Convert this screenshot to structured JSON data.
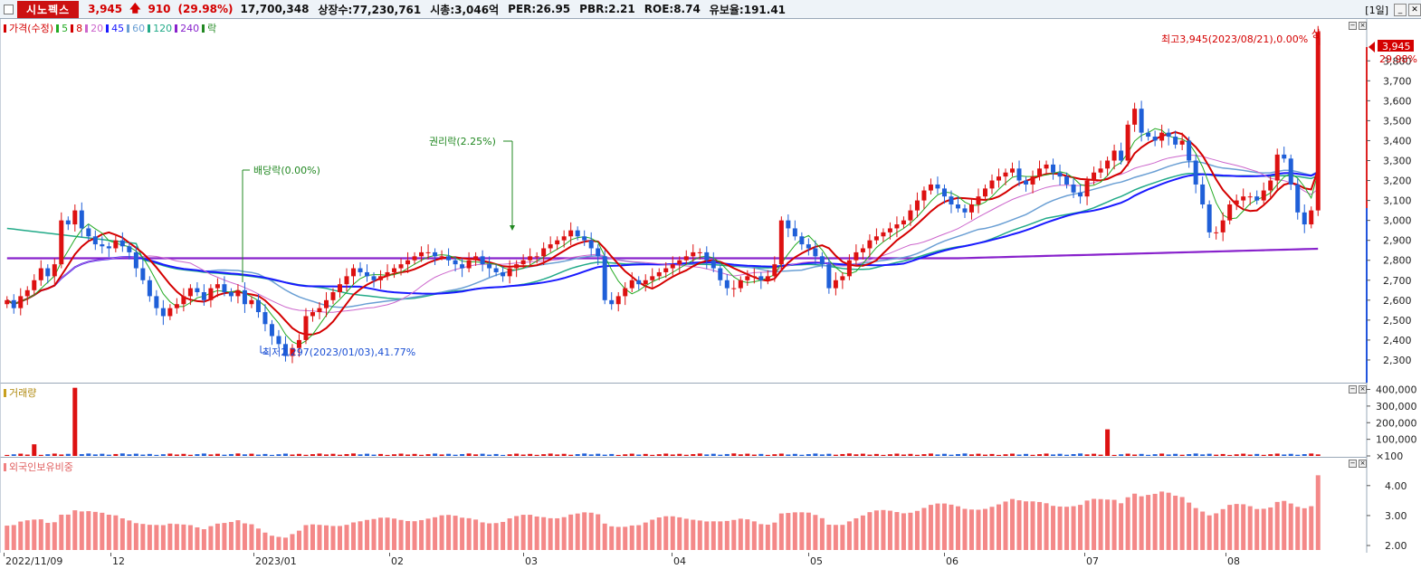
{
  "header": {
    "stock_name": "시노펙스",
    "price": "3,945",
    "change": "910",
    "change_pct": "(29.98%)",
    "volume": "17,700,348",
    "shares": "상장수:77,230,761",
    "mktcap": "시총:3,046억",
    "per": "PER:26.95",
    "pbr": "PBR:2.21",
    "roe": "ROE:8.74",
    "retention": "유보율:191.41",
    "period": "[1일]",
    "up_icon": "up-arrow-icon"
  },
  "price_panel": {
    "legend": [
      {
        "label": "가격(수정)",
        "color": "#d40000"
      },
      {
        "label": "5",
        "color": "#22aa22"
      },
      {
        "label": "8",
        "color": "#d40000"
      },
      {
        "label": "20",
        "color": "#cc66cc"
      },
      {
        "label": "45",
        "color": "#1a1aff"
      },
      {
        "label": "60",
        "color": "#6a9fd4"
      },
      {
        "label": "120",
        "color": "#22aa88"
      },
      {
        "label": "240",
        "color": "#8822cc"
      },
      {
        "label": "락",
        "color": "#228822"
      }
    ],
    "price_tag": "3,945",
    "pct_tag": "29.98%",
    "annotations": {
      "high": "최고3,945(2023/08/21),0.00%",
      "limit_up": "상",
      "low": "최저2,297(2023/01/03),41.77%",
      "dividend": "배당락(0.00%)",
      "rights": "권리락(2.25%)"
    }
  },
  "volume_panel": {
    "legend": "거래량"
  },
  "foreign_panel": {
    "legend": "외국인보유비중"
  },
  "x_axis": {
    "labels": [
      "2022/11/09",
      "12",
      "2023/01",
      "02",
      "03",
      "04",
      "05",
      "06",
      "07",
      "08"
    ]
  },
  "chart_data": [
    {
      "type": "candlestick",
      "title": "",
      "ylim": [
        2200,
        3960
      ],
      "y_ticks": [
        "3,800",
        "3,700",
        "3,600",
        "3,500",
        "3,400",
        "3,300",
        "3,200",
        "3,100",
        "3,000",
        "2,900",
        "2,800",
        "2,700",
        "2,600",
        "2,500",
        "2,400",
        "2,300"
      ],
      "y_values": [
        3800,
        3700,
        3600,
        3500,
        3400,
        3300,
        3200,
        3100,
        3000,
        2900,
        2800,
        2700,
        2600,
        2500,
        2400,
        2300
      ],
      "series_close": [
        2600,
        2560,
        2620,
        2650,
        2700,
        2760,
        2720,
        2780,
        3000,
        2980,
        3050,
        2960,
        2920,
        2880,
        2870,
        2860,
        2900,
        2870,
        2840,
        2760,
        2700,
        2620,
        2560,
        2520,
        2560,
        2580,
        2620,
        2660,
        2640,
        2600,
        2660,
        2680,
        2640,
        2620,
        2650,
        2580,
        2600,
        2540,
        2480,
        2420,
        2380,
        2320,
        2360,
        2400,
        2520,
        2540,
        2560,
        2600,
        2640,
        2680,
        2720,
        2760,
        2740,
        2720,
        2700,
        2720,
        2740,
        2760,
        2780,
        2800,
        2820,
        2840,
        2840,
        2820,
        2820,
        2800,
        2780,
        2760,
        2800,
        2820,
        2780,
        2760,
        2740,
        2720,
        2760,
        2780,
        2800,
        2820,
        2820,
        2860,
        2880,
        2900,
        2920,
        2950,
        2920,
        2900,
        2860,
        2820,
        2600,
        2580,
        2620,
        2660,
        2700,
        2680,
        2700,
        2720,
        2740,
        2760,
        2780,
        2800,
        2820,
        2840,
        2840,
        2800,
        2760,
        2700,
        2660,
        2660,
        2700,
        2720,
        2720,
        2700,
        2720,
        2780,
        3000,
        2960,
        2920,
        2880,
        2860,
        2820,
        2780,
        2660,
        2700,
        2720,
        2800,
        2840,
        2860,
        2900,
        2920,
        2940,
        2960,
        2980,
        3000,
        3050,
        3100,
        3150,
        3180,
        3160,
        3120,
        3080,
        3060,
        3040,
        3080,
        3120,
        3160,
        3200,
        3220,
        3240,
        3260,
        3200,
        3180,
        3220,
        3260,
        3280,
        3240,
        3220,
        3180,
        3140,
        3120,
        3200,
        3240,
        3260,
        3300,
        3350,
        3300,
        3480,
        3560,
        3440,
        3420,
        3400,
        3440,
        3420,
        3380,
        3400,
        3300,
        3180,
        3080,
        2940,
        2940,
        3000,
        3080,
        3100,
        3120,
        3120,
        3100,
        3150,
        3200,
        3330,
        3310,
        3180,
        3040,
        2980,
        3050,
        3945
      ],
      "ma_lines": [
        "5",
        "8",
        "20",
        "45",
        "60",
        "120",
        "240"
      ]
    },
    {
      "type": "bar",
      "title": "거래량",
      "y_ticks": [
        "400,000",
        "300,000",
        "200,000",
        "100,000",
        "×100"
      ],
      "y_values": [
        4000,
        3000,
        2000,
        1000,
        0
      ],
      "ylim": [
        0,
        4300
      ],
      "spikes": [
        {
          "x_index": 10,
          "value": 4100
        },
        {
          "x_index": 4,
          "value": 700
        },
        {
          "x_index": 162,
          "value": 1600
        }
      ]
    },
    {
      "type": "bar",
      "title": "외국인보유비중",
      "y_ticks": [
        "4.00",
        "3.00",
        "2.00"
      ],
      "y_values": [
        4.0,
        3.0,
        2.0
      ],
      "ylim": [
        1.85,
        4.9
      ]
    }
  ]
}
